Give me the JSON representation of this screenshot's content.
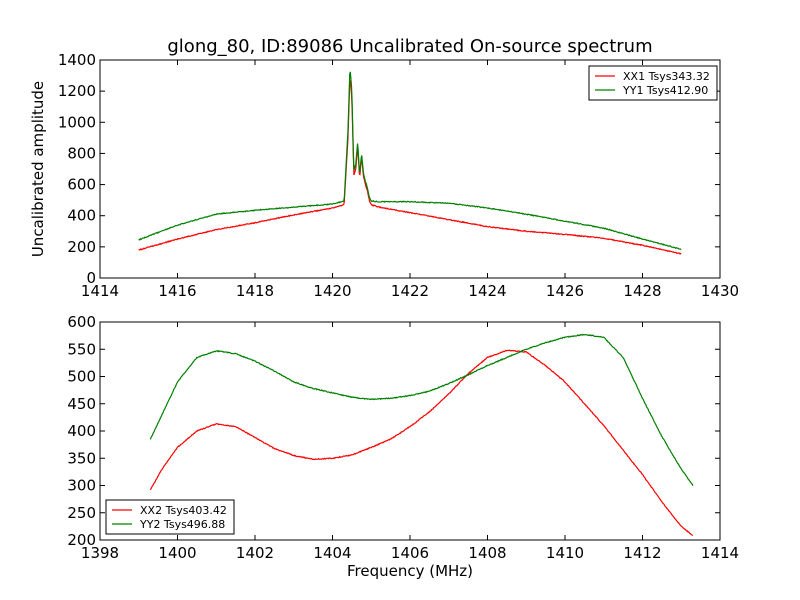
{
  "chart_data": [
    {
      "type": "line",
      "title": "glong_80, ID:89086 Uncalibrated On-source spectrum",
      "xlabel": "",
      "ylabel": "Uncalibrated amplitude",
      "xlim": [
        1414,
        1430
      ],
      "ylim": [
        0,
        1400
      ],
      "xticks": [
        1414,
        1416,
        1418,
        1420,
        1422,
        1424,
        1426,
        1428,
        1430
      ],
      "yticks": [
        0,
        200,
        400,
        600,
        800,
        1000,
        1200,
        1400
      ],
      "grid": false,
      "legend_position": "top-right",
      "series": [
        {
          "name": "XX1 Tsys343.32",
          "color": "#ff0000",
          "x": [
            1415.0,
            1416.0,
            1417.0,
            1418.0,
            1419.0,
            1420.0,
            1420.3,
            1420.4,
            1420.45,
            1420.5,
            1420.55,
            1420.6,
            1420.65,
            1420.7,
            1420.75,
            1420.8,
            1420.85,
            1420.9,
            1420.95,
            1421.0,
            1421.2,
            1422.0,
            1423.0,
            1424.0,
            1425.0,
            1426.0,
            1427.0,
            1428.0,
            1429.0
          ],
          "y": [
            180,
            250,
            310,
            355,
            405,
            450,
            470,
            900,
            1300,
            1150,
            660,
            700,
            850,
            640,
            780,
            650,
            600,
            560,
            500,
            470,
            455,
            420,
            375,
            330,
            300,
            280,
            255,
            210,
            155
          ]
        },
        {
          "name": "YY1 Tsys412.90",
          "color": "#008000",
          "x": [
            1415.0,
            1416.0,
            1417.0,
            1418.0,
            1419.0,
            1420.0,
            1420.3,
            1420.4,
            1420.45,
            1420.5,
            1420.55,
            1420.6,
            1420.65,
            1420.7,
            1420.75,
            1420.8,
            1420.85,
            1420.9,
            1420.95,
            1421.0,
            1421.2,
            1422.0,
            1423.0,
            1424.0,
            1425.0,
            1426.0,
            1427.0,
            1428.0,
            1429.0
          ],
          "y": [
            245,
            340,
            410,
            435,
            455,
            475,
            495,
            950,
            1355,
            1200,
            690,
            730,
            875,
            660,
            800,
            670,
            620,
            580,
            520,
            495,
            490,
            490,
            480,
            450,
            410,
            365,
            320,
            250,
            185
          ]
        }
      ]
    },
    {
      "type": "line",
      "title": "",
      "xlabel": "Frequency (MHz)",
      "ylabel": "",
      "xlim": [
        1398,
        1414
      ],
      "ylim": [
        200,
        600
      ],
      "xticks": [
        1398,
        1400,
        1402,
        1404,
        1406,
        1408,
        1410,
        1412,
        1414
      ],
      "yticks": [
        200,
        250,
        300,
        350,
        400,
        450,
        500,
        550,
        600
      ],
      "grid": false,
      "legend_position": "bottom-left",
      "series": [
        {
          "name": "XX2 Tsys403.42",
          "color": "#ff0000",
          "x": [
            1399.3,
            1399.6,
            1400.0,
            1400.5,
            1401.0,
            1401.5,
            1402.0,
            1402.5,
            1403.0,
            1403.5,
            1404.0,
            1404.5,
            1405.0,
            1405.5,
            1406.0,
            1406.5,
            1407.0,
            1407.5,
            1408.0,
            1408.5,
            1409.0,
            1409.5,
            1410.0,
            1410.5,
            1411.0,
            1411.5,
            1412.0,
            1412.5,
            1413.0,
            1413.3
          ],
          "y": [
            292,
            330,
            370,
            400,
            413,
            408,
            388,
            368,
            355,
            348,
            350,
            356,
            370,
            385,
            408,
            435,
            468,
            505,
            535,
            548,
            545,
            520,
            490,
            450,
            410,
            365,
            320,
            270,
            225,
            208
          ]
        },
        {
          "name": "YY2 Tsys496.88",
          "color": "#008000",
          "x": [
            1399.3,
            1399.6,
            1400.0,
            1400.5,
            1401.0,
            1401.5,
            1402.0,
            1402.5,
            1403.0,
            1403.5,
            1404.0,
            1404.5,
            1405.0,
            1405.5,
            1406.0,
            1406.5,
            1407.0,
            1407.5,
            1408.0,
            1408.5,
            1409.0,
            1409.5,
            1410.0,
            1410.5,
            1411.0,
            1411.5,
            1412.0,
            1412.5,
            1413.0,
            1413.3
          ],
          "y": [
            385,
            430,
            490,
            535,
            547,
            542,
            528,
            510,
            490,
            478,
            470,
            462,
            458,
            460,
            465,
            473,
            487,
            503,
            520,
            535,
            550,
            562,
            572,
            577,
            572,
            535,
            460,
            390,
            330,
            300
          ]
        }
      ]
    }
  ]
}
